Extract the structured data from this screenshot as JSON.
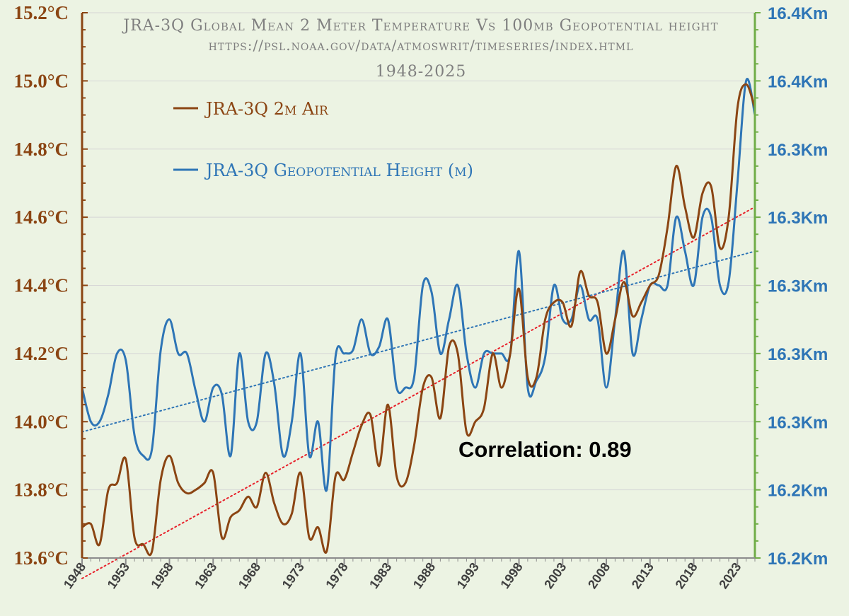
{
  "chart_data": {
    "type": "line",
    "title": "JRA-3Q Global Mean 2 Meter Temperature Vs 100mb Geopotential height",
    "subtitle": "https://psl.noaa.gov/data/atmoswrit/timeseries/index.html",
    "period": "1948-2025",
    "x": [
      1948,
      1949,
      1950,
      1951,
      1952,
      1953,
      1954,
      1955,
      1956,
      1957,
      1958,
      1959,
      1960,
      1961,
      1962,
      1963,
      1964,
      1965,
      1966,
      1967,
      1968,
      1969,
      1970,
      1971,
      1972,
      1973,
      1974,
      1975,
      1976,
      1977,
      1978,
      1979,
      1980,
      1981,
      1982,
      1983,
      1984,
      1985,
      1986,
      1987,
      1988,
      1989,
      1990,
      1991,
      1992,
      1993,
      1994,
      1995,
      1996,
      1997,
      1998,
      1999,
      2000,
      2001,
      2002,
      2003,
      2004,
      2005,
      2006,
      2007,
      2008,
      2009,
      2010,
      2011,
      2012,
      2013,
      2014,
      2015,
      2016,
      2017,
      2018,
      2019,
      2020,
      2021,
      2022,
      2023,
      2024,
      2025
    ],
    "xticks": [
      "1948",
      "1953",
      "1958",
      "1963",
      "1968",
      "1973",
      "1978",
      "1983",
      "1988",
      "1993",
      "1998",
      "2003",
      "2008",
      "2013",
      "2018",
      "2023"
    ],
    "series": [
      {
        "name": "JRA-3Q 2m Air",
        "color": "#8b4513",
        "axis": "left",
        "values": [
          13.69,
          13.7,
          13.64,
          13.8,
          13.82,
          13.89,
          13.66,
          13.64,
          13.62,
          13.83,
          13.9,
          13.82,
          13.79,
          13.8,
          13.82,
          13.85,
          13.66,
          13.72,
          13.74,
          13.78,
          13.75,
          13.85,
          13.76,
          13.7,
          13.73,
          13.85,
          13.66,
          13.69,
          13.62,
          13.84,
          13.83,
          13.91,
          13.99,
          14.02,
          13.87,
          14.05,
          13.84,
          13.82,
          13.93,
          14.1,
          14.13,
          14.01,
          14.22,
          14.2,
          13.97,
          14.0,
          14.04,
          14.2,
          14.1,
          14.2,
          14.39,
          14.13,
          14.13,
          14.3,
          14.35,
          14.35,
          14.28,
          14.44,
          14.37,
          14.35,
          14.2,
          14.3,
          14.41,
          14.31,
          14.35,
          14.4,
          14.43,
          14.57,
          14.75,
          14.63,
          14.54,
          14.67,
          14.69,
          14.51,
          14.6,
          14.92,
          14.99,
          14.92
        ]
      },
      {
        "name": "JRA-3Q Geopotential Height (m)",
        "color": "#2e75b6",
        "axis": "right",
        "values": [
          14.1,
          14.0,
          14.0,
          14.08,
          14.2,
          14.18,
          13.96,
          13.9,
          13.92,
          14.21,
          14.3,
          14.2,
          14.2,
          14.09,
          14.0,
          14.1,
          14.08,
          13.9,
          14.2,
          14.0,
          14.0,
          14.2,
          14.11,
          13.9,
          14.0,
          14.2,
          13.9,
          14.0,
          13.8,
          14.19,
          14.2,
          14.21,
          14.3,
          14.2,
          14.22,
          14.3,
          14.1,
          14.1,
          14.13,
          14.4,
          14.38,
          14.2,
          14.3,
          14.4,
          14.2,
          14.1,
          14.2,
          14.2,
          14.2,
          14.2,
          14.5,
          14.1,
          14.12,
          14.19,
          14.4,
          14.3,
          14.3,
          14.4,
          14.3,
          14.3,
          14.1,
          14.3,
          14.5,
          14.2,
          14.3,
          14.4,
          14.4,
          14.4,
          14.6,
          14.5,
          14.4,
          14.6,
          14.6,
          14.4,
          14.41,
          14.7,
          15.0,
          14.9
        ]
      }
    ],
    "trendlines": [
      {
        "name": "2m Air trend",
        "color": "#e8202a",
        "x": [
          1948,
          2025
        ],
        "y": [
          13.54,
          14.63
        ]
      },
      {
        "name": "Geopotential trend",
        "color": "#2e75b6",
        "x": [
          1948,
          2025
        ],
        "y": [
          13.97,
          14.5
        ]
      }
    ],
    "left_axis": {
      "ylim": [
        13.6,
        15.2
      ],
      "ticks": [
        13.6,
        13.8,
        14.0,
        14.2,
        14.4,
        14.6,
        14.8,
        15.0,
        15.2
      ],
      "tick_labels": [
        "13.6°C",
        "13.8°C",
        "14.0°C",
        "14.2°C",
        "14.4°C",
        "14.6°C",
        "14.8°C",
        "15.0°C",
        "15.2°C"
      ]
    },
    "right_axis": {
      "tick_labels": [
        "16.2Km",
        "16.2Km",
        "16.3Km",
        "16.3Km",
        "16.3Km",
        "16.3Km",
        "16.3Km",
        "16.4Km",
        "16.4Km"
      ]
    },
    "annotation": "Correlation: 0.89",
    "grid": true,
    "legend_position": "top-left"
  },
  "colors": {
    "background": "#ecf3e3",
    "left_axis": "#8b4513",
    "right_axis": "#70ad47",
    "gridline": "#d6d6d6"
  }
}
